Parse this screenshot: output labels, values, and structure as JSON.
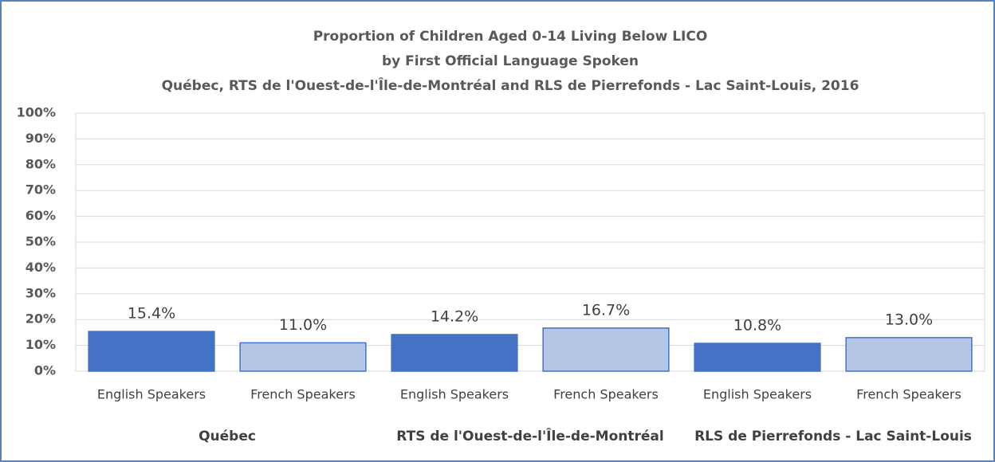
{
  "chart_data": {
    "type": "bar",
    "title_lines": [
      "Proportion of Children Aged 0-14 Living Below LICO",
      "by First Official Language Spoken",
      "Québec, RTS de l'Ouest-de-l'Île-de-Montréal and RLS de Pierrefonds - Lac Saint-Louis, 2016"
    ],
    "groups": [
      {
        "name": "Québec",
        "categories": [
          "English Speakers",
          "French Speakers"
        ],
        "values": [
          15.4,
          11.0
        ],
        "value_labels": [
          "15.4%",
          "11.0%"
        ]
      },
      {
        "name": "RTS de l'Ouest-de-l'Île-de-Montréal",
        "categories": [
          "English Speakers",
          "French Speakers"
        ],
        "values": [
          14.2,
          16.7
        ],
        "value_labels": [
          "14.2%",
          "16.7%"
        ]
      },
      {
        "name": "RLS de Pierrefonds - Lac Saint-Louis",
        "categories": [
          "English Speakers",
          "French Speakers"
        ],
        "values": [
          10.8,
          13.0
        ],
        "value_labels": [
          "10.8%",
          "13.0%"
        ]
      }
    ],
    "bar_colors": [
      "#4472c4",
      "#b4c7e7"
    ],
    "ylim": [
      0,
      100
    ],
    "yticks": [
      {
        "value": 0,
        "label": "0%"
      },
      {
        "value": 10,
        "label": "10%"
      },
      {
        "value": 20,
        "label": "20%"
      },
      {
        "value": 30,
        "label": "30%"
      },
      {
        "value": 40,
        "label": "40%"
      },
      {
        "value": 50,
        "label": "50%"
      },
      {
        "value": 60,
        "label": "60%"
      },
      {
        "value": 70,
        "label": "70%"
      },
      {
        "value": 80,
        "label": "80%"
      },
      {
        "value": 90,
        "label": "90%"
      },
      {
        "value": 100,
        "label": "100%"
      }
    ],
    "grid": true
  }
}
